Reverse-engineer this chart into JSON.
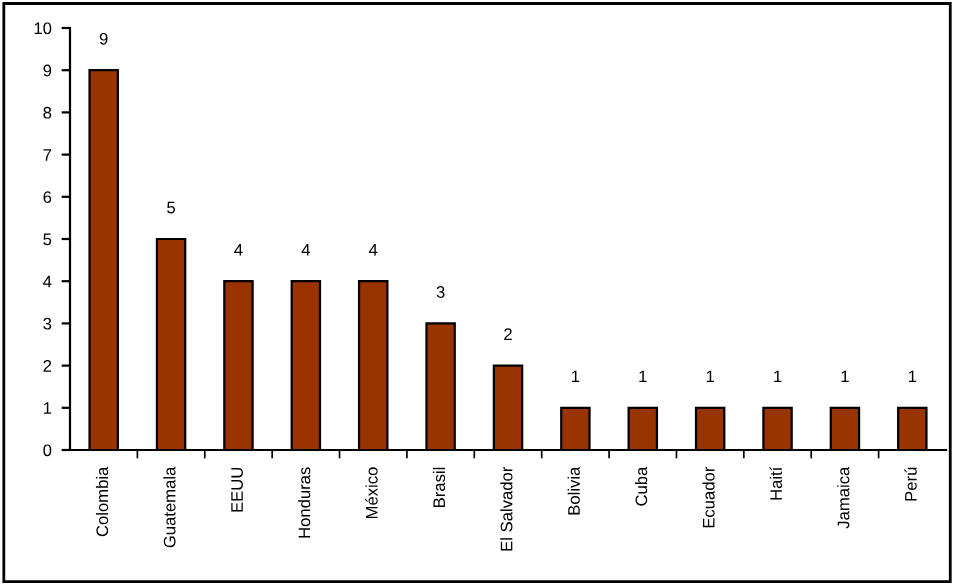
{
  "chart_data": {
    "type": "bar",
    "categories": [
      "Colombia",
      "Guatemala",
      "EEUU",
      "Honduras",
      "México",
      "Brasil",
      "El Salvador",
      "Bolivia",
      "Cuba",
      "Ecuador",
      "Haití",
      "Jamaica",
      "Perú"
    ],
    "values": [
      9,
      5,
      4,
      4,
      4,
      3,
      2,
      1,
      1,
      1,
      1,
      1,
      1
    ],
    "color": "#993300",
    "ylim": [
      0,
      10
    ],
    "yticks": [
      0,
      1,
      2,
      3,
      4,
      5,
      6,
      7,
      8,
      9,
      10
    ],
    "data_labels": true,
    "grid": false,
    "legend": false
  }
}
